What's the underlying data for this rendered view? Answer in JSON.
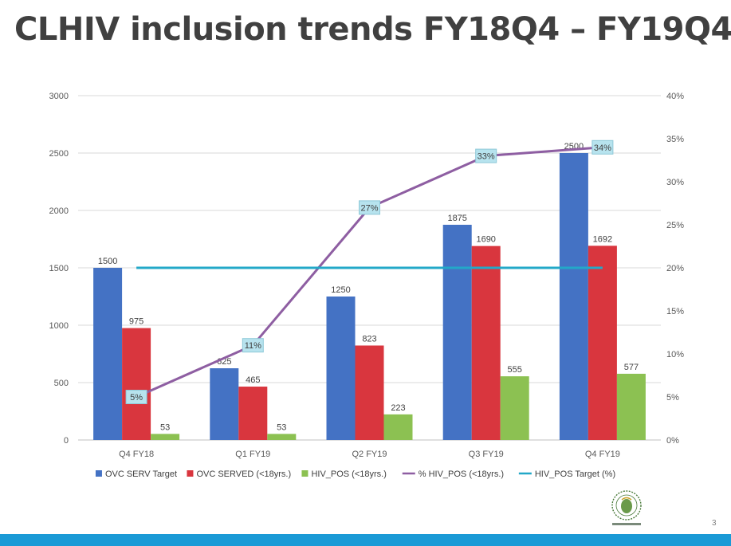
{
  "slide": {
    "title": "CLHIV inclusion trends FY18Q4 – FY19Q4",
    "slide_number": "3"
  },
  "chart_data": {
    "type": "bar",
    "categories": [
      "Q4 FY18",
      "Q1 FY19",
      "Q2 FY19",
      "Q3 FY19",
      "Q4 FY19"
    ],
    "series": [
      {
        "name": "OVC SERV Target",
        "kind": "bar",
        "axis": "left",
        "color": "#4472c4",
        "values": [
          1500,
          625,
          1250,
          1875,
          2500
        ]
      },
      {
        "name": "OVC SERVED (<18yrs.)",
        "kind": "bar",
        "axis": "left",
        "color": "#d9363e",
        "values": [
          975,
          465,
          823,
          1690,
          1692
        ]
      },
      {
        "name": "HIV_POS (<18yrs.)",
        "kind": "bar",
        "axis": "left",
        "color": "#8cc152",
        "values": [
          53,
          53,
          223,
          555,
          577
        ]
      },
      {
        "name": "% HIV_POS (<18yrs.)",
        "kind": "line",
        "axis": "right",
        "color": "#8e5ea2",
        "values": [
          5,
          11,
          27,
          33,
          34
        ],
        "labels": [
          "5%",
          "11%",
          "27%",
          "33%",
          "34%"
        ]
      },
      {
        "name": "HIV_POS Target (%)",
        "kind": "line",
        "axis": "right",
        "color": "#23a8c8",
        "values": [
          20,
          20,
          20,
          20,
          20
        ]
      }
    ],
    "y_left": {
      "range": [
        0,
        3000
      ],
      "ticks": [
        "0",
        "500",
        "1000",
        "1500",
        "2000",
        "2500",
        "3000"
      ]
    },
    "y_right": {
      "range": [
        0,
        40
      ],
      "ticks": [
        "0%",
        "5%",
        "10%",
        "15%",
        "20%",
        "25%",
        "30%",
        "35%",
        "40%"
      ]
    },
    "grid": true,
    "legend": "bottom"
  }
}
